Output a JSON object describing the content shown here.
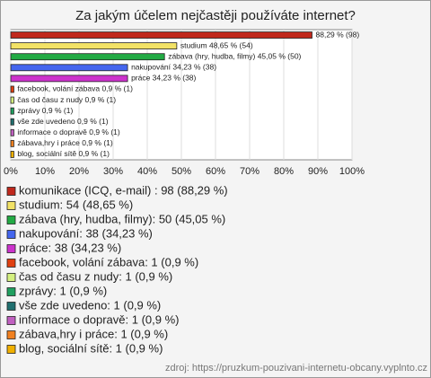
{
  "chart_data": {
    "type": "hbar",
    "title": "Za jakým účelem nejčastěji používáte internet?",
    "values": [
      88.29,
      48.65,
      45.05,
      34.23,
      34.23,
      0.9,
      0.9,
      0.9,
      0.9,
      0.9,
      0.9,
      0.9
    ],
    "value_labels": [
      "88,29 % (98)",
      "studium 48,65 % (54)",
      "zábava (hry, hudba, filmy) 45,05 % (50)",
      "nakupování 34,23 % (38)",
      "práce 34,23 % (38)",
      "facebook, volání zábava 0,9 % (1)",
      "čas od času z nudy 0,9 % (1)",
      "zprávy 0,9 % (1)",
      "vše zde uvedeno 0,9 % (1)",
      "informace o dopravě 0,9 % (1)",
      "zábava,hry i práce 0,9 % (1)",
      "blog, sociální sítě 0,9 % (1)"
    ],
    "legend": [
      "komunikace (ICQ, e-mail) : 98 (88,29 %)",
      "studium: 54 (48,65 %)",
      "zábava (hry, hudba, filmy): 50 (45,05 %)",
      "nakupování: 38 (34,23 %)",
      "práce: 38 (34,23 %)",
      "facebook, volání zábava: 1 (0,9 %)",
      "čas od času z nudy: 1 (0,9 %)",
      "zprávy: 1 (0,9 %)",
      "vše zde uvedeno: 1 (0,9 %)",
      "informace o dopravě: 1 (0,9 %)",
      "zábava,hry i práce: 1 (0,9 %)",
      "blog, sociální sítě: 1 (0,9 %)"
    ],
    "colors": [
      "#c0281c",
      "#f2e266",
      "#22aa44",
      "#4466ee",
      "#cc33cc",
      "#e04010",
      "#d4f080",
      "#20a060",
      "#207070",
      "#c060c0",
      "#f08020",
      "#f0b000"
    ],
    "xlim": [
      0,
      100
    ],
    "xticks": [
      {
        "value": 0,
        "label": "0%"
      },
      {
        "value": 10,
        "label": "10%"
      },
      {
        "value": 20,
        "label": "20%"
      },
      {
        "value": 30,
        "label": "30%"
      },
      {
        "value": 40,
        "label": "40%"
      },
      {
        "value": 50,
        "label": "50%"
      },
      {
        "value": 60,
        "label": "60%"
      },
      {
        "value": 70,
        "label": "70%"
      },
      {
        "value": 80,
        "label": "80%"
      },
      {
        "value": 90,
        "label": "90%"
      },
      {
        "value": 100,
        "label": "100%"
      }
    ],
    "grid": true,
    "source": "zdroj: https://pruzkum-pouzivani-internetu-obcany.vyplnto.cz"
  }
}
